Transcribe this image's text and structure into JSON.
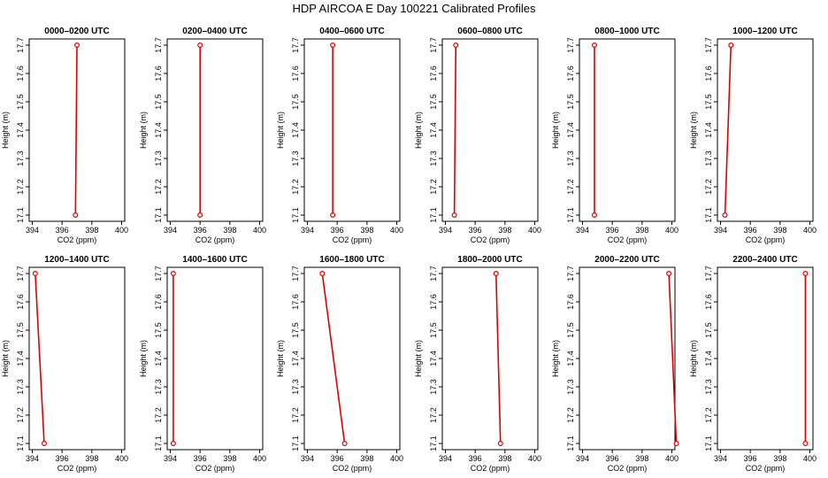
{
  "figure": {
    "title": "HDP AIRCOA E  Day 100221  Calibrated Profiles",
    "line_color": "#e00000",
    "marker_color": "#e00000"
  },
  "chart_data": [
    {
      "type": "line",
      "title": "0000–0200 UTC",
      "xlabel": "CO2 (ppm)",
      "ylabel": "Height (m)",
      "xlim": [
        394,
        400
      ],
      "ylim": [
        17.1,
        17.7
      ],
      "xticks": [
        "394",
        "396",
        "398",
        "400"
      ],
      "yticks": [
        "17.1",
        "17.2",
        "17.3",
        "17.4",
        "17.5",
        "17.6",
        "17.7"
      ],
      "points": [
        {
          "x": 396.9,
          "y": 17.1
        },
        {
          "x": 397.0,
          "y": 17.7
        }
      ]
    },
    {
      "type": "line",
      "title": "0200–0400 UTC",
      "xlabel": "CO2 (ppm)",
      "ylabel": "Height (m)",
      "xlim": [
        394,
        400
      ],
      "ylim": [
        17.1,
        17.7
      ],
      "xticks": [
        "394",
        "396",
        "398",
        "400"
      ],
      "yticks": [
        "17.1",
        "17.2",
        "17.3",
        "17.4",
        "17.5",
        "17.6",
        "17.7"
      ],
      "points": [
        {
          "x": 396.0,
          "y": 17.1
        },
        {
          "x": 396.0,
          "y": 17.7
        }
      ]
    },
    {
      "type": "line",
      "title": "0400–0600 UTC",
      "xlabel": "CO2 (ppm)",
      "ylabel": "Height (m)",
      "xlim": [
        394,
        400
      ],
      "ylim": [
        17.1,
        17.7
      ],
      "xticks": [
        "394",
        "396",
        "398",
        "400"
      ],
      "yticks": [
        "17.1",
        "17.2",
        "17.3",
        "17.4",
        "17.5",
        "17.6",
        "17.7"
      ],
      "points": [
        {
          "x": 395.7,
          "y": 17.1
        },
        {
          "x": 395.7,
          "y": 17.7
        }
      ]
    },
    {
      "type": "line",
      "title": "0600–0800 UTC",
      "xlabel": "CO2 (ppm)",
      "ylabel": "Height (m)",
      "xlim": [
        394,
        400
      ],
      "ylim": [
        17.1,
        17.7
      ],
      "xticks": [
        "394",
        "396",
        "398",
        "400"
      ],
      "yticks": [
        "17.1",
        "17.2",
        "17.3",
        "17.4",
        "17.5",
        "17.6",
        "17.7"
      ],
      "points": [
        {
          "x": 394.6,
          "y": 17.1
        },
        {
          "x": 394.7,
          "y": 17.7
        }
      ]
    },
    {
      "type": "line",
      "title": "0800–1000 UTC",
      "xlabel": "CO2 (ppm)",
      "ylabel": "Height (m)",
      "xlim": [
        394,
        400
      ],
      "ylim": [
        17.1,
        17.7
      ],
      "xticks": [
        "394",
        "396",
        "398",
        "400"
      ],
      "yticks": [
        "17.1",
        "17.2",
        "17.3",
        "17.4",
        "17.5",
        "17.6",
        "17.7"
      ],
      "points": [
        {
          "x": 394.8,
          "y": 17.1
        },
        {
          "x": 394.8,
          "y": 17.7
        }
      ]
    },
    {
      "type": "line",
      "title": "1000–1200 UTC",
      "xlabel": "CO2 (ppm)",
      "ylabel": "Height (m)",
      "xlim": [
        394,
        400
      ],
      "ylim": [
        17.1,
        17.7
      ],
      "xticks": [
        "394",
        "396",
        "398",
        "400"
      ],
      "yticks": [
        "17.1",
        "17.2",
        "17.3",
        "17.4",
        "17.5",
        "17.6",
        "17.7"
      ],
      "points": [
        {
          "x": 394.3,
          "y": 17.1
        },
        {
          "x": 394.7,
          "y": 17.7
        }
      ]
    },
    {
      "type": "line",
      "title": "1200–1400 UTC",
      "xlabel": "CO2 (ppm)",
      "ylabel": "Height (m)",
      "xlim": [
        394,
        400
      ],
      "ylim": [
        17.1,
        17.7
      ],
      "xticks": [
        "394",
        "396",
        "398",
        "400"
      ],
      "yticks": [
        "17.1",
        "17.2",
        "17.3",
        "17.4",
        "17.5",
        "17.6",
        "17.7"
      ],
      "points": [
        {
          "x": 394.8,
          "y": 17.1
        },
        {
          "x": 394.2,
          "y": 17.7
        }
      ]
    },
    {
      "type": "line",
      "title": "1400–1600 UTC",
      "xlabel": "CO2 (ppm)",
      "ylabel": "Height (m)",
      "xlim": [
        394,
        400
      ],
      "ylim": [
        17.1,
        17.7
      ],
      "xticks": [
        "394",
        "396",
        "398",
        "400"
      ],
      "yticks": [
        "17.1",
        "17.2",
        "17.3",
        "17.4",
        "17.5",
        "17.6",
        "17.7"
      ],
      "points": [
        {
          "x": 394.2,
          "y": 17.1
        },
        {
          "x": 394.2,
          "y": 17.7
        }
      ]
    },
    {
      "type": "line",
      "title": "1600–1800 UTC",
      "xlabel": "CO2 (ppm)",
      "ylabel": "Height (m)",
      "xlim": [
        394,
        400
      ],
      "ylim": [
        17.1,
        17.7
      ],
      "xticks": [
        "394",
        "396",
        "398",
        "400"
      ],
      "yticks": [
        "17.1",
        "17.2",
        "17.3",
        "17.4",
        "17.5",
        "17.6",
        "17.7"
      ],
      "points": [
        {
          "x": 396.5,
          "y": 17.1
        },
        {
          "x": 395.0,
          "y": 17.7
        }
      ]
    },
    {
      "type": "line",
      "title": "1800–2000 UTC",
      "xlabel": "CO2 (ppm)",
      "ylabel": "Height (m)",
      "xlim": [
        394,
        400
      ],
      "ylim": [
        17.1,
        17.7
      ],
      "xticks": [
        "394",
        "396",
        "398",
        "400"
      ],
      "yticks": [
        "17.1",
        "17.2",
        "17.3",
        "17.4",
        "17.5",
        "17.6",
        "17.7"
      ],
      "points": [
        {
          "x": 397.7,
          "y": 17.1
        },
        {
          "x": 397.4,
          "y": 17.7
        }
      ]
    },
    {
      "type": "line",
      "title": "2000–2200 UTC",
      "xlabel": "CO2 (ppm)",
      "ylabel": "Height (m)",
      "xlim": [
        394,
        400
      ],
      "ylim": [
        17.1,
        17.7
      ],
      "xticks": [
        "394",
        "396",
        "398",
        "400"
      ],
      "yticks": [
        "17.1",
        "17.2",
        "17.3",
        "17.4",
        "17.5",
        "17.6",
        "17.7"
      ],
      "points": [
        {
          "x": 400.3,
          "y": 17.1
        },
        {
          "x": 399.8,
          "y": 17.7
        }
      ]
    },
    {
      "type": "line",
      "title": "2200–2400 UTC",
      "xlabel": "CO2 (ppm)",
      "ylabel": "Height (m)",
      "xlim": [
        394,
        400
      ],
      "ylim": [
        17.1,
        17.7
      ],
      "xticks": [
        "394",
        "396",
        "398",
        "400"
      ],
      "yticks": [
        "17.1",
        "17.2",
        "17.3",
        "17.4",
        "17.5",
        "17.6",
        "17.7"
      ],
      "points": [
        {
          "x": 399.7,
          "y": 17.1
        },
        {
          "x": 399.7,
          "y": 17.7
        }
      ]
    }
  ]
}
